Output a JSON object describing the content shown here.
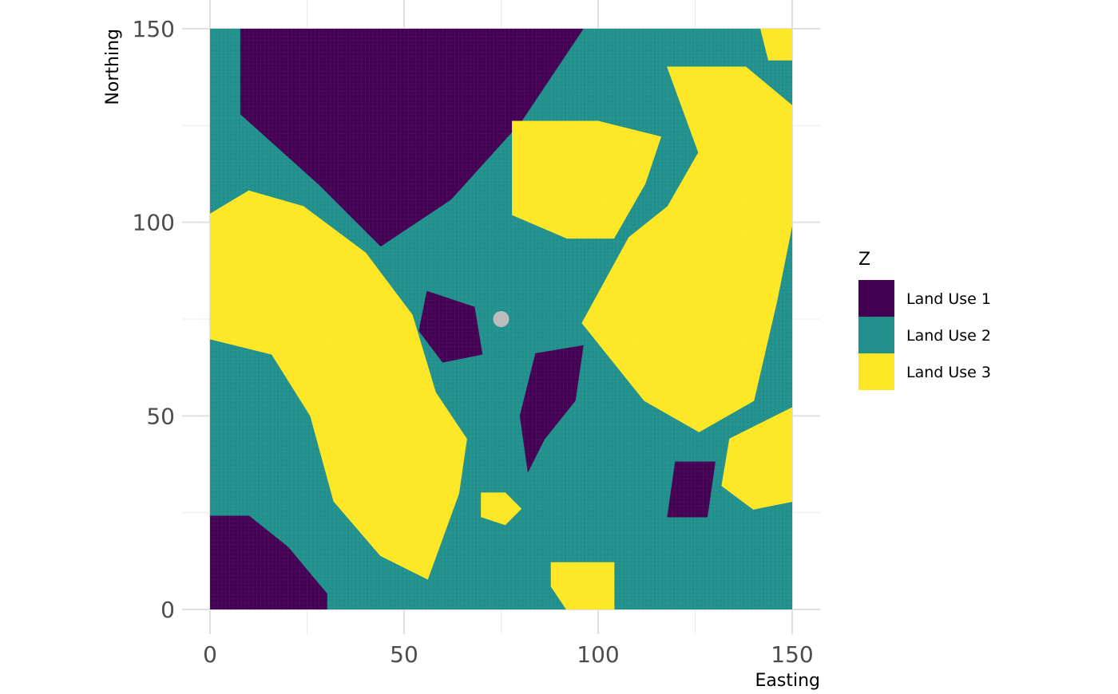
{
  "chart_data": {
    "type": "heatmap",
    "title": "",
    "xlabel": "Easting",
    "ylabel": "Northing",
    "xlim": [
      0,
      150
    ],
    "ylim": [
      0,
      150
    ],
    "x_ticks": [
      0,
      50,
      100,
      150
    ],
    "y_ticks": [
      0,
      50,
      100,
      150
    ],
    "x_tick_labels": [
      "0",
      "50",
      "100",
      "150"
    ],
    "y_tick_labels": [
      "0",
      "50",
      "100",
      "150"
    ],
    "grid": true,
    "legend": {
      "title": "Z",
      "placement": "right",
      "entries": [
        {
          "label": "Land Use 1",
          "color": "#440154"
        },
        {
          "label": "Land Use 2",
          "color": "#21908C"
        },
        {
          "label": "Land Use 3",
          "color": "#FDE725"
        }
      ]
    },
    "highlight_point": {
      "x": 75,
      "y": 75,
      "color": "#bdbdbd"
    },
    "regions": {
      "land_use_1": [
        [
          8,
          150,
          96,
          150,
          80,
          126,
          62,
          106,
          44,
          94,
          28,
          110,
          8,
          128
        ],
        [
          56,
          82,
          68,
          78,
          70,
          66,
          60,
          64,
          54,
          72
        ],
        [
          84,
          66,
          96,
          68,
          94,
          54,
          86,
          44,
          82,
          36,
          80,
          50
        ],
        [
          120,
          38,
          130,
          38,
          128,
          24,
          118,
          24
        ],
        [
          0,
          24,
          10,
          24,
          20,
          16,
          30,
          4,
          30,
          0,
          0,
          0
        ]
      ],
      "land_use_3": [
        [
          78,
          126,
          100,
          126,
          116,
          122,
          112,
          110,
          104,
          96,
          92,
          96,
          78,
          102
        ],
        [
          118,
          140,
          138,
          140,
          150,
          130,
          150,
          100,
          146,
          80,
          140,
          54,
          126,
          46,
          112,
          54,
          96,
          74,
          108,
          96,
          118,
          104,
          126,
          118
        ],
        [
          0,
          102,
          10,
          108,
          24,
          104,
          40,
          92,
          52,
          76,
          58,
          56,
          66,
          44,
          64,
          30,
          56,
          8,
          44,
          14,
          32,
          28,
          26,
          50,
          16,
          66,
          0,
          70
        ],
        [
          134,
          44,
          150,
          52,
          150,
          28,
          140,
          26,
          132,
          32
        ],
        [
          142,
          150,
          150,
          150,
          150,
          142,
          144,
          142
        ],
        [
          88,
          12,
          104,
          12,
          104,
          0,
          92,
          0,
          88,
          6
        ],
        [
          70,
          30,
          76,
          30,
          80,
          26,
          76,
          22,
          70,
          24
        ]
      ]
    }
  }
}
